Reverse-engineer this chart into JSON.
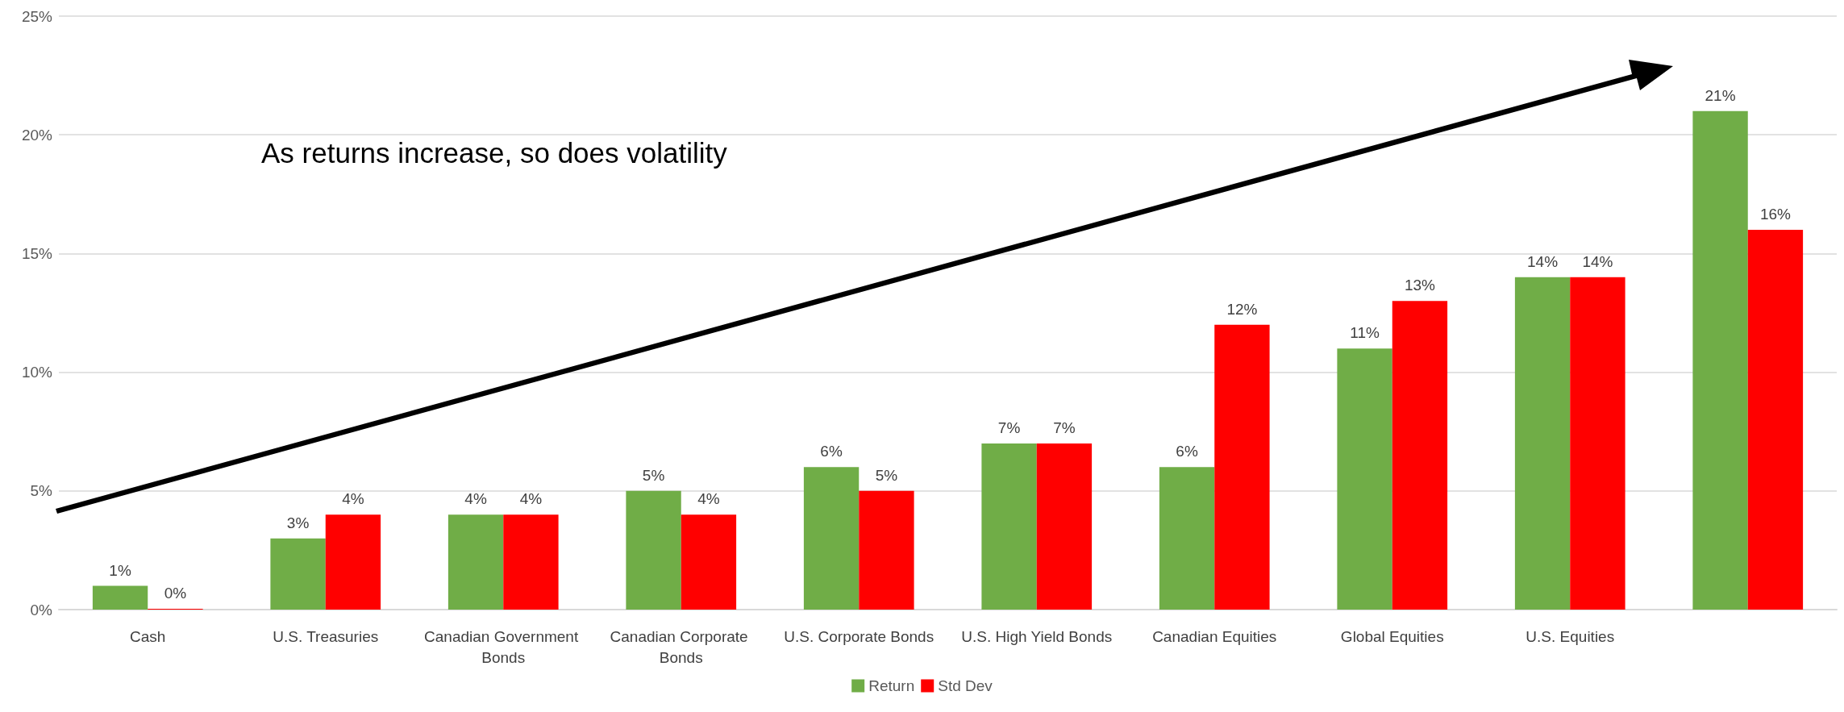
{
  "chart_data": {
    "type": "bar",
    "categories": [
      "Cash",
      "U.S. Treasuries",
      "Canadian Government Bonds",
      "Canadian Corporate Bonds",
      "U.S. Corporate Bonds",
      "U.S. High Yield Bonds",
      "Canadian Equities",
      "Global Equities",
      "U.S. Equities",
      null
    ],
    "series": [
      {
        "name": "Return",
        "color": "#70ad47",
        "values": [
          1,
          3,
          4,
          5,
          6,
          7,
          6,
          11,
          14,
          21
        ],
        "value_labels": [
          "1%",
          "3%",
          "4%",
          "5%",
          "6%",
          "7%",
          "6%",
          "11%",
          "14%",
          "21%"
        ]
      },
      {
        "name": "Std Dev",
        "color": "#ff0000",
        "values": [
          0,
          4,
          4,
          4,
          5,
          7,
          12,
          13,
          14,
          16
        ],
        "value_labels": [
          "0%",
          "4%",
          "4%",
          "4%",
          "5%",
          "7%",
          "12%",
          "13%",
          "14%",
          "16%"
        ]
      }
    ],
    "ylim": [
      0,
      25
    ],
    "yticks": [
      {
        "value": 0,
        "label": "0%"
      },
      {
        "value": 5,
        "label": "5%"
      },
      {
        "value": 10,
        "label": "10%"
      },
      {
        "value": 15,
        "label": "15%"
      },
      {
        "value": 20,
        "label": "20%"
      },
      {
        "value": 25,
        "label": "25%"
      }
    ],
    "grid": "y",
    "legend": "bottom",
    "annotations": [
      "As returns increase, so does volatility"
    ]
  }
}
